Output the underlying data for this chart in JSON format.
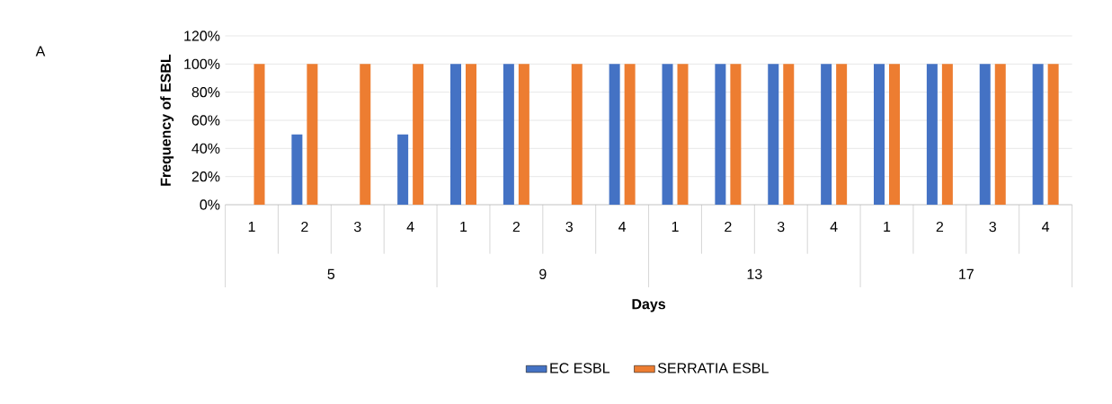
{
  "chart_data": {
    "type": "bar",
    "xlabel": "Days",
    "ylabel": "Frequency of  ESBL",
    "categories": [
      "1",
      "2",
      "3",
      "4",
      "1",
      "2",
      "3",
      "4",
      "1",
      "2",
      "3",
      "4",
      "1",
      "2",
      "3",
      "4"
    ],
    "series": [
      {
        "name": "EC ESBL",
        "color": "#4472c4",
        "values": [
          0,
          50,
          0,
          50,
          100,
          100,
          0,
          100,
          100,
          100,
          100,
          100,
          100,
          100,
          100,
          100
        ]
      },
      {
        "name": "SERRATIA ESBL",
        "color": "#ed7d31",
        "values": [
          100,
          100,
          100,
          100,
          100,
          100,
          100,
          100,
          100,
          100,
          100,
          100,
          100,
          100,
          100,
          100
        ]
      }
    ],
    "ylim": [
      0,
      120
    ],
    "yticks": [
      {
        "value": 0,
        "label": "0%"
      },
      {
        "value": 20,
        "label": "20%"
      },
      {
        "value": 40,
        "label": "40%"
      },
      {
        "value": 60,
        "label": "60%"
      },
      {
        "value": 80,
        "label": "80%"
      },
      {
        "value": 100,
        "label": "100%"
      },
      {
        "value": 120,
        "label": "120%"
      }
    ],
    "grid": "y",
    "legend": "bottom",
    "annotations": [
      "A",
      "5",
      "9",
      "13",
      "17"
    ]
  }
}
